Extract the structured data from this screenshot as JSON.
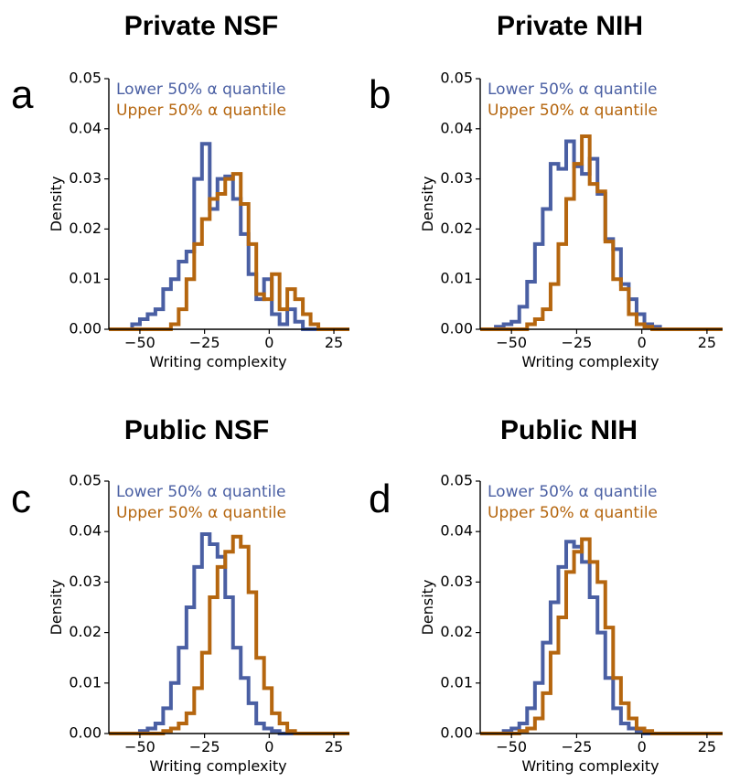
{
  "colors": {
    "lower": "#4a5fa3",
    "upper": "#b5660f"
  },
  "chart_data": [
    {
      "type": "step-histogram",
      "title": "Private NSF",
      "panel_label": "a",
      "xlabel": "Writing complexity",
      "ylabel": "Density",
      "xlim": [
        -62,
        31
      ],
      "ylim": [
        0,
        0.05
      ],
      "xticks": [
        -50,
        -25,
        0,
        25
      ],
      "xtick_labels": [
        "−50",
        "−25",
        "0",
        "25"
      ],
      "yticks": [
        0,
        0.01,
        0.02,
        0.03,
        0.04,
        0.05
      ],
      "ytick_labels": [
        "0.00",
        "0.01",
        "0.02",
        "0.03",
        "0.04",
        "0.05"
      ],
      "legend": [
        "Lower 50% α quantile",
        "Upper 50% α quantile"
      ],
      "bin_edges": [
        -62,
        -59,
        -56,
        -53,
        -50,
        -47,
        -44,
        -41,
        -38,
        -35,
        -32,
        -29,
        -26,
        -23,
        -20,
        -17,
        -14,
        -11,
        -8,
        -5,
        -2,
        1,
        4,
        7,
        10,
        13,
        16,
        19,
        22,
        25,
        28,
        31
      ],
      "series": [
        {
          "name": "Lower 50% α quantile",
          "values": [
            0,
            0,
            0,
            0.001,
            0.002,
            0.003,
            0.004,
            0.008,
            0.01,
            0.0135,
            0.0155,
            0.03,
            0.037,
            0.024,
            0.03,
            0.0305,
            0.026,
            0.019,
            0.011,
            0.006,
            0.01,
            0.003,
            0.001,
            0.004,
            0.0015,
            0,
            0,
            0,
            0,
            0,
            0
          ]
        },
        {
          "name": "Upper 50% α quantile",
          "values": [
            0,
            0,
            0,
            0,
            0,
            0,
            0,
            0,
            0.001,
            0.004,
            0.01,
            0.017,
            0.022,
            0.026,
            0.027,
            0.03,
            0.031,
            0.025,
            0.017,
            0.007,
            0.006,
            0.011,
            0.004,
            0.008,
            0.006,
            0.003,
            0.001,
            0,
            0,
            0,
            0
          ]
        }
      ]
    },
    {
      "type": "step-histogram",
      "title": "Private NIH",
      "panel_label": "b",
      "xlabel": "Writing complexity",
      "ylabel": "Density",
      "xlim": [
        -62,
        31
      ],
      "ylim": [
        0,
        0.05
      ],
      "xticks": [
        -50,
        -25,
        0,
        25
      ],
      "xtick_labels": [
        "−50",
        "−25",
        "0",
        "25"
      ],
      "yticks": [
        0,
        0.01,
        0.02,
        0.03,
        0.04,
        0.05
      ],
      "ytick_labels": [
        "0.00",
        "0.01",
        "0.02",
        "0.03",
        "0.04",
        "0.05"
      ],
      "legend": [
        "Lower 50% α quantile",
        "Upper 50% α quantile"
      ],
      "bin_edges": [
        -62,
        -59,
        -56,
        -53,
        -50,
        -47,
        -44,
        -41,
        -38,
        -35,
        -32,
        -29,
        -26,
        -23,
        -20,
        -17,
        -14,
        -11,
        -8,
        -5,
        -2,
        1,
        4,
        7,
        10,
        13,
        16,
        19,
        22,
        25,
        28,
        31
      ],
      "series": [
        {
          "name": "Lower 50% α quantile",
          "values": [
            0,
            0,
            0.0005,
            0.001,
            0.0015,
            0.0045,
            0.0095,
            0.017,
            0.024,
            0.033,
            0.032,
            0.0375,
            0.0325,
            0.031,
            0.034,
            0.027,
            0.018,
            0.016,
            0.009,
            0.006,
            0.003,
            0.001,
            0.0005,
            0,
            0,
            0,
            0,
            0,
            0,
            0,
            0
          ]
        },
        {
          "name": "Upper 50% α quantile",
          "values": [
            0,
            0,
            0,
            0,
            0,
            0,
            0.001,
            0.002,
            0.004,
            0.009,
            0.017,
            0.026,
            0.033,
            0.0385,
            0.029,
            0.0275,
            0.0175,
            0.01,
            0.008,
            0.003,
            0.001,
            0.0005,
            0,
            0,
            0,
            0,
            0,
            0,
            0,
            0,
            0
          ]
        }
      ]
    },
    {
      "type": "step-histogram",
      "title": "Public NSF",
      "panel_label": "c",
      "xlabel": "Writing complexity",
      "ylabel": "Density",
      "xlim": [
        -62,
        31
      ],
      "ylim": [
        0,
        0.05
      ],
      "xticks": [
        -50,
        -25,
        0,
        25
      ],
      "xtick_labels": [
        "−50",
        "−25",
        "0",
        "25"
      ],
      "yticks": [
        0,
        0.01,
        0.02,
        0.03,
        0.04,
        0.05
      ],
      "ytick_labels": [
        "0.00",
        "0.01",
        "0.02",
        "0.03",
        "0.04",
        "0.05"
      ],
      "legend": [
        "Lower 50% α quantile",
        "Upper 50% α quantile"
      ],
      "bin_edges": [
        -62,
        -59,
        -56,
        -53,
        -50,
        -47,
        -44,
        -41,
        -38,
        -35,
        -32,
        -29,
        -26,
        -23,
        -20,
        -17,
        -14,
        -11,
        -8,
        -5,
        -2,
        1,
        4,
        7,
        10,
        13,
        16,
        19,
        22,
        25,
        28,
        31
      ],
      "series": [
        {
          "name": "Lower 50% α quantile",
          "values": [
            0,
            0,
            0,
            0,
            0.0005,
            0.001,
            0.002,
            0.005,
            0.01,
            0.017,
            0.025,
            0.033,
            0.0395,
            0.0375,
            0.035,
            0.027,
            0.017,
            0.011,
            0.006,
            0.002,
            0.001,
            0.0005,
            0,
            0,
            0,
            0,
            0,
            0,
            0,
            0,
            0
          ]
        },
        {
          "name": "Upper 50% α quantile",
          "values": [
            0,
            0,
            0,
            0,
            0,
            0,
            0,
            0.0005,
            0.001,
            0.002,
            0.004,
            0.009,
            0.016,
            0.027,
            0.033,
            0.036,
            0.039,
            0.037,
            0.028,
            0.015,
            0.009,
            0.004,
            0.002,
            0.0005,
            0,
            0,
            0,
            0,
            0,
            0,
            0
          ]
        }
      ]
    },
    {
      "type": "step-histogram",
      "title": "Public NIH",
      "panel_label": "d",
      "xlabel": "Writing complexity",
      "ylabel": "Density",
      "xlim": [
        -62,
        31
      ],
      "ylim": [
        0,
        0.05
      ],
      "xticks": [
        -50,
        -25,
        0,
        25
      ],
      "xtick_labels": [
        "−50",
        "−25",
        "0",
        "25"
      ],
      "yticks": [
        0,
        0.01,
        0.02,
        0.03,
        0.04,
        0.05
      ],
      "ytick_labels": [
        "0.00",
        "0.01",
        "0.02",
        "0.03",
        "0.04",
        "0.05"
      ],
      "legend": [
        "Lower 50% α quantile",
        "Upper 50% α quantile"
      ],
      "bin_edges": [
        -62,
        -59,
        -56,
        -53,
        -50,
        -47,
        -44,
        -41,
        -38,
        -35,
        -32,
        -29,
        -26,
        -23,
        -20,
        -17,
        -14,
        -11,
        -8,
        -5,
        -2,
        1,
        4,
        7,
        10,
        13,
        16,
        19,
        22,
        25,
        28,
        31
      ],
      "series": [
        {
          "name": "Lower 50% α quantile",
          "values": [
            0,
            0,
            0,
            0.0005,
            0.001,
            0.002,
            0.005,
            0.01,
            0.018,
            0.026,
            0.033,
            0.038,
            0.037,
            0.034,
            0.027,
            0.02,
            0.011,
            0.005,
            0.002,
            0.001,
            0.0005,
            0,
            0,
            0,
            0,
            0,
            0,
            0,
            0,
            0,
            0
          ]
        },
        {
          "name": "Upper 50% α quantile",
          "values": [
            0,
            0,
            0,
            0,
            0,
            0.0005,
            0.001,
            0.003,
            0.008,
            0.016,
            0.023,
            0.032,
            0.036,
            0.0385,
            0.034,
            0.03,
            0.021,
            0.011,
            0.006,
            0.003,
            0.001,
            0.0005,
            0,
            0,
            0,
            0,
            0,
            0,
            0,
            0,
            0
          ]
        }
      ]
    }
  ]
}
